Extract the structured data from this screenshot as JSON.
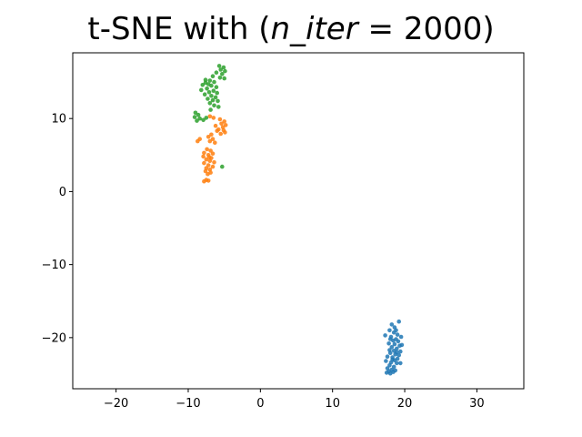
{
  "chart_data": {
    "type": "scatter",
    "title": "t-SNE with (n_iter = 2000)",
    "title_parts": {
      "prefix": "t-SNE with (",
      "param": "n_iter",
      "equals": " = ",
      "value": "2000",
      "suffix": ")"
    },
    "xlabel": "",
    "ylabel": "",
    "xlim": [
      -26,
      36.5
    ],
    "ylim": [
      -27,
      19
    ],
    "xticks": [
      -20,
      -10,
      0,
      10,
      20,
      30
    ],
    "xtick_labels": [
      "−20",
      "−10",
      "0",
      "10",
      "20",
      "30"
    ],
    "yticks": [
      -20,
      -10,
      0,
      10
    ],
    "ytick_labels": [
      "−20",
      "−10",
      "0",
      "10"
    ],
    "grid": false,
    "legend": false,
    "series": [
      {
        "color": "#1f77b4",
        "points": [
          [
            18.2,
            -18.2
          ],
          [
            18.6,
            -18.6
          ],
          [
            19.2,
            -17.8
          ],
          [
            17.9,
            -19.0
          ],
          [
            18.5,
            -19.3
          ],
          [
            19.0,
            -19.6
          ],
          [
            17.3,
            -19.7
          ],
          [
            18.1,
            -19.9
          ],
          [
            19.5,
            -19.9
          ],
          [
            18.8,
            -20.2
          ],
          [
            18.4,
            -20.4
          ],
          [
            19.1,
            -20.5
          ],
          [
            17.8,
            -20.8
          ],
          [
            18.6,
            -20.9
          ],
          [
            19.3,
            -21.1
          ],
          [
            18.2,
            -21.3
          ],
          [
            18.9,
            -21.5
          ],
          [
            17.9,
            -21.7
          ],
          [
            18.5,
            -21.8
          ],
          [
            19.4,
            -21.9
          ],
          [
            18.0,
            -22.1
          ],
          [
            18.7,
            -22.3
          ],
          [
            19.2,
            -22.4
          ],
          [
            17.6,
            -22.6
          ],
          [
            18.3,
            -22.7
          ],
          [
            19.0,
            -22.9
          ],
          [
            18.6,
            -23.1
          ],
          [
            17.4,
            -23.2
          ],
          [
            18.1,
            -23.4
          ],
          [
            18.9,
            -23.5
          ],
          [
            19.4,
            -23.5
          ],
          [
            17.9,
            -23.8
          ],
          [
            18.5,
            -24.0
          ],
          [
            17.6,
            -24.2
          ],
          [
            18.2,
            -24.4
          ],
          [
            17.8,
            -24.6
          ],
          [
            18.4,
            -24.7
          ],
          [
            18.0,
            -24.9
          ],
          [
            18.7,
            -24.5
          ],
          [
            17.5,
            -24.8
          ],
          [
            18.9,
            -22.0
          ],
          [
            18.3,
            -23.0
          ],
          [
            19.6,
            -21.0
          ],
          [
            18.0,
            -20.2
          ],
          [
            18.8,
            -19.0
          ]
        ]
      },
      {
        "color": "#ff7f0e",
        "points": [
          [
            -7.0,
            10.3
          ],
          [
            -6.5,
            10.1
          ],
          [
            -5.6,
            9.9
          ],
          [
            -5.0,
            9.6
          ],
          [
            -4.8,
            9.1
          ],
          [
            -5.2,
            8.8
          ],
          [
            -5.8,
            8.5
          ],
          [
            -6.0,
            8.3
          ],
          [
            -4.9,
            8.1
          ],
          [
            -5.5,
            7.9
          ],
          [
            -6.8,
            7.8
          ],
          [
            -7.2,
            7.5
          ],
          [
            -6.6,
            7.2
          ],
          [
            -8.4,
            7.2
          ],
          [
            -8.7,
            6.9
          ],
          [
            -7.0,
            6.9
          ],
          [
            -6.3,
            6.7
          ],
          [
            -7.4,
            5.8
          ],
          [
            -6.9,
            5.6
          ],
          [
            -7.8,
            5.3
          ],
          [
            -6.6,
            5.2
          ],
          [
            -7.2,
            5.0
          ],
          [
            -7.9,
            4.8
          ],
          [
            -6.8,
            4.6
          ],
          [
            -7.5,
            4.4
          ],
          [
            -7.0,
            4.2
          ],
          [
            -6.4,
            4.0
          ],
          [
            -7.8,
            3.9
          ],
          [
            -7.2,
            3.6
          ],
          [
            -6.6,
            3.4
          ],
          [
            -7.5,
            3.2
          ],
          [
            -7.0,
            3.0
          ],
          [
            -7.6,
            2.8
          ],
          [
            -6.9,
            2.6
          ],
          [
            -7.3,
            2.4
          ],
          [
            -7.5,
            1.6
          ],
          [
            -7.2,
            1.5
          ],
          [
            -7.8,
            1.4
          ],
          [
            -5.4,
            9.3
          ],
          [
            -6.2,
            9.0
          ],
          [
            -5.1,
            8.4
          ],
          [
            -7.1,
            4.7
          ]
        ]
      },
      {
        "color": "#2ca02c",
        "points": [
          [
            -5.7,
            17.2
          ],
          [
            -5.1,
            17.0
          ],
          [
            -5.5,
            16.7
          ],
          [
            -4.9,
            16.5
          ],
          [
            -6.1,
            16.3
          ],
          [
            -5.3,
            16.1
          ],
          [
            -6.6,
            15.8
          ],
          [
            -5.6,
            15.6
          ],
          [
            -5.0,
            15.5
          ],
          [
            -7.6,
            15.3
          ],
          [
            -7.0,
            15.2
          ],
          [
            -6.4,
            15.0
          ],
          [
            -7.2,
            14.7
          ],
          [
            -8.0,
            14.6
          ],
          [
            -6.8,
            14.5
          ],
          [
            -6.1,
            14.3
          ],
          [
            -7.4,
            14.1
          ],
          [
            -8.2,
            13.9
          ],
          [
            -6.5,
            13.8
          ],
          [
            -7.1,
            13.6
          ],
          [
            -6.0,
            13.5
          ],
          [
            -7.7,
            13.3
          ],
          [
            -6.8,
            13.1
          ],
          [
            -6.2,
            12.9
          ],
          [
            -7.3,
            12.7
          ],
          [
            -6.6,
            12.5
          ],
          [
            -5.9,
            12.4
          ],
          [
            -7.0,
            12.1
          ],
          [
            -6.4,
            11.8
          ],
          [
            -5.8,
            11.6
          ],
          [
            -9.0,
            10.8
          ],
          [
            -8.6,
            10.5
          ],
          [
            -9.1,
            10.2
          ],
          [
            -8.4,
            10.0
          ],
          [
            -7.9,
            9.8
          ],
          [
            -8.8,
            9.7
          ],
          [
            -7.5,
            10.1
          ],
          [
            -5.3,
            3.4
          ],
          [
            -6.9,
            11.2
          ],
          [
            -7.6,
            14.9
          ]
        ]
      }
    ]
  }
}
